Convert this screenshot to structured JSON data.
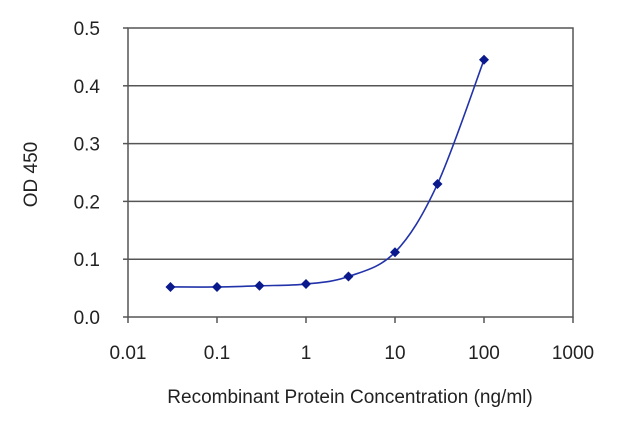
{
  "chart_data": {
    "type": "line",
    "title": "",
    "xlabel": "Recombinant Protein Concentration (ng/ml)",
    "ylabel": "OD 450",
    "x_scale": "log",
    "xlim": [
      0.01,
      1000
    ],
    "ylim": [
      0.0,
      0.5
    ],
    "x_tick_labels": [
      "0.01",
      "0.1",
      "1",
      "10",
      "100",
      "1000"
    ],
    "x_ticks": [
      0.01,
      0.1,
      1,
      10,
      100,
      1000
    ],
    "y_tick_labels": [
      "0.0",
      "0.1",
      "0.2",
      "0.3",
      "0.4",
      "0.5"
    ],
    "y_ticks": [
      0.0,
      0.1,
      0.2,
      0.3,
      0.4,
      0.5
    ],
    "grid": "horizontal",
    "legend": "none",
    "series": [
      {
        "x": [
          0.03,
          0.1,
          0.3,
          1,
          3,
          10,
          30,
          100
        ],
        "y": [
          0.052,
          0.052,
          0.054,
          0.057,
          0.07,
          0.112,
          0.23,
          0.445
        ],
        "color": "#2233aa",
        "marker": "diamond",
        "marker_color": "#0a1a8c"
      }
    ]
  }
}
